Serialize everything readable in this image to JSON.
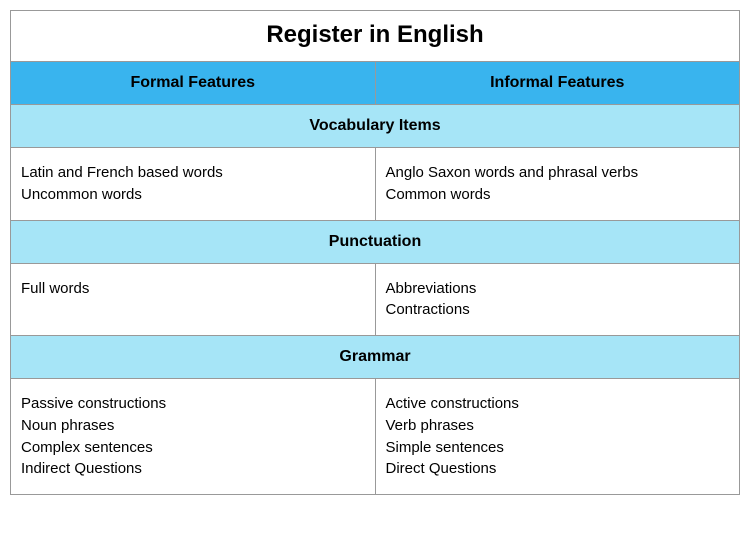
{
  "table": {
    "title": "Register in English",
    "title_fontsize": 24,
    "columns": [
      {
        "label": "Formal Features"
      },
      {
        "label": "Informal Features"
      }
    ],
    "column_header_bg": "#39b4ee",
    "column_header_color": "#000000",
    "column_header_fontsize": 16,
    "sections": [
      {
        "label": "Vocabulary Items",
        "rows": [
          {
            "formal": [
              "Latin and French based words",
              "Uncommon words"
            ],
            "informal": [
              "Anglo Saxon words and phrasal verbs",
              "Common words"
            ]
          }
        ]
      },
      {
        "label": "Punctuation",
        "rows": [
          {
            "formal": [
              "Full words"
            ],
            "informal": [
              "Abbreviations",
              "Contractions"
            ]
          }
        ]
      },
      {
        "label": "Grammar",
        "rows": [
          {
            "formal": [
              "Passive constructions",
              "Noun phrases",
              "Complex sentences",
              "Indirect Questions"
            ],
            "informal": [
              "Active constructions",
              "Verb phrases",
              "Simple sentences",
              "Direct Questions"
            ]
          }
        ]
      }
    ],
    "section_header_bg": "#a6e5f7",
    "section_header_color": "#000000",
    "section_header_fontsize": 16,
    "body_fontsize": 15,
    "body_color": "#000000",
    "border_color": "#999999",
    "background_color": "#ffffff"
  }
}
